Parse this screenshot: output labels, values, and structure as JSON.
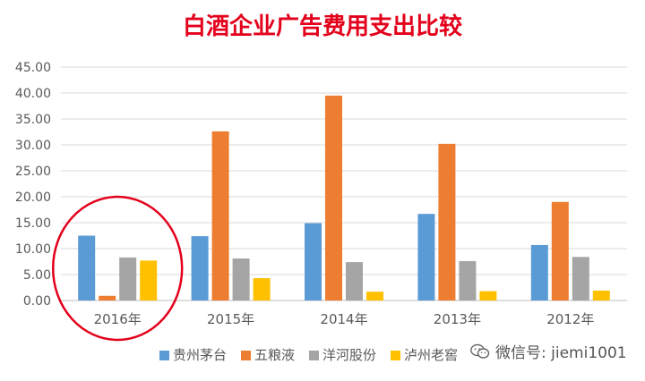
{
  "chart_data": {
    "type": "bar",
    "title": "白酒企业广告费用支出比较",
    "categories": [
      "2016年",
      "2015年",
      "2014年",
      "2013年",
      "2012年"
    ],
    "series": [
      {
        "name": "贵州茅台",
        "color": "#5B9BD5",
        "values": [
          12.5,
          12.4,
          14.9,
          16.7,
          10.7
        ]
      },
      {
        "name": "五粮液",
        "color": "#ED7D31",
        "values": [
          0.9,
          32.6,
          39.5,
          30.2,
          19.0
        ]
      },
      {
        "name": "洋河股份",
        "color": "#A5A5A5",
        "values": [
          8.3,
          8.1,
          7.4,
          7.6,
          8.4
        ]
      },
      {
        "name": "泸州老窖",
        "color": "#FFC000",
        "values": [
          7.7,
          4.3,
          1.7,
          1.8,
          1.9
        ]
      }
    ],
    "ylim": [
      0,
      45
    ],
    "yticks": [
      "0.00",
      "5.00",
      "10.00",
      "15.00",
      "20.00",
      "25.00",
      "30.00",
      "35.00",
      "40.00",
      "45.00"
    ],
    "grid": true,
    "legend": "bottom",
    "annotation": "red circle around 2016年"
  },
  "watermark": {
    "text": "微信号: jiemi1001",
    "icon": "wechat-icon"
  },
  "colors": {
    "title": "#E3001B",
    "circle": "#E3001B",
    "grid": "#D9D9D9",
    "axis_text": "#595959"
  }
}
